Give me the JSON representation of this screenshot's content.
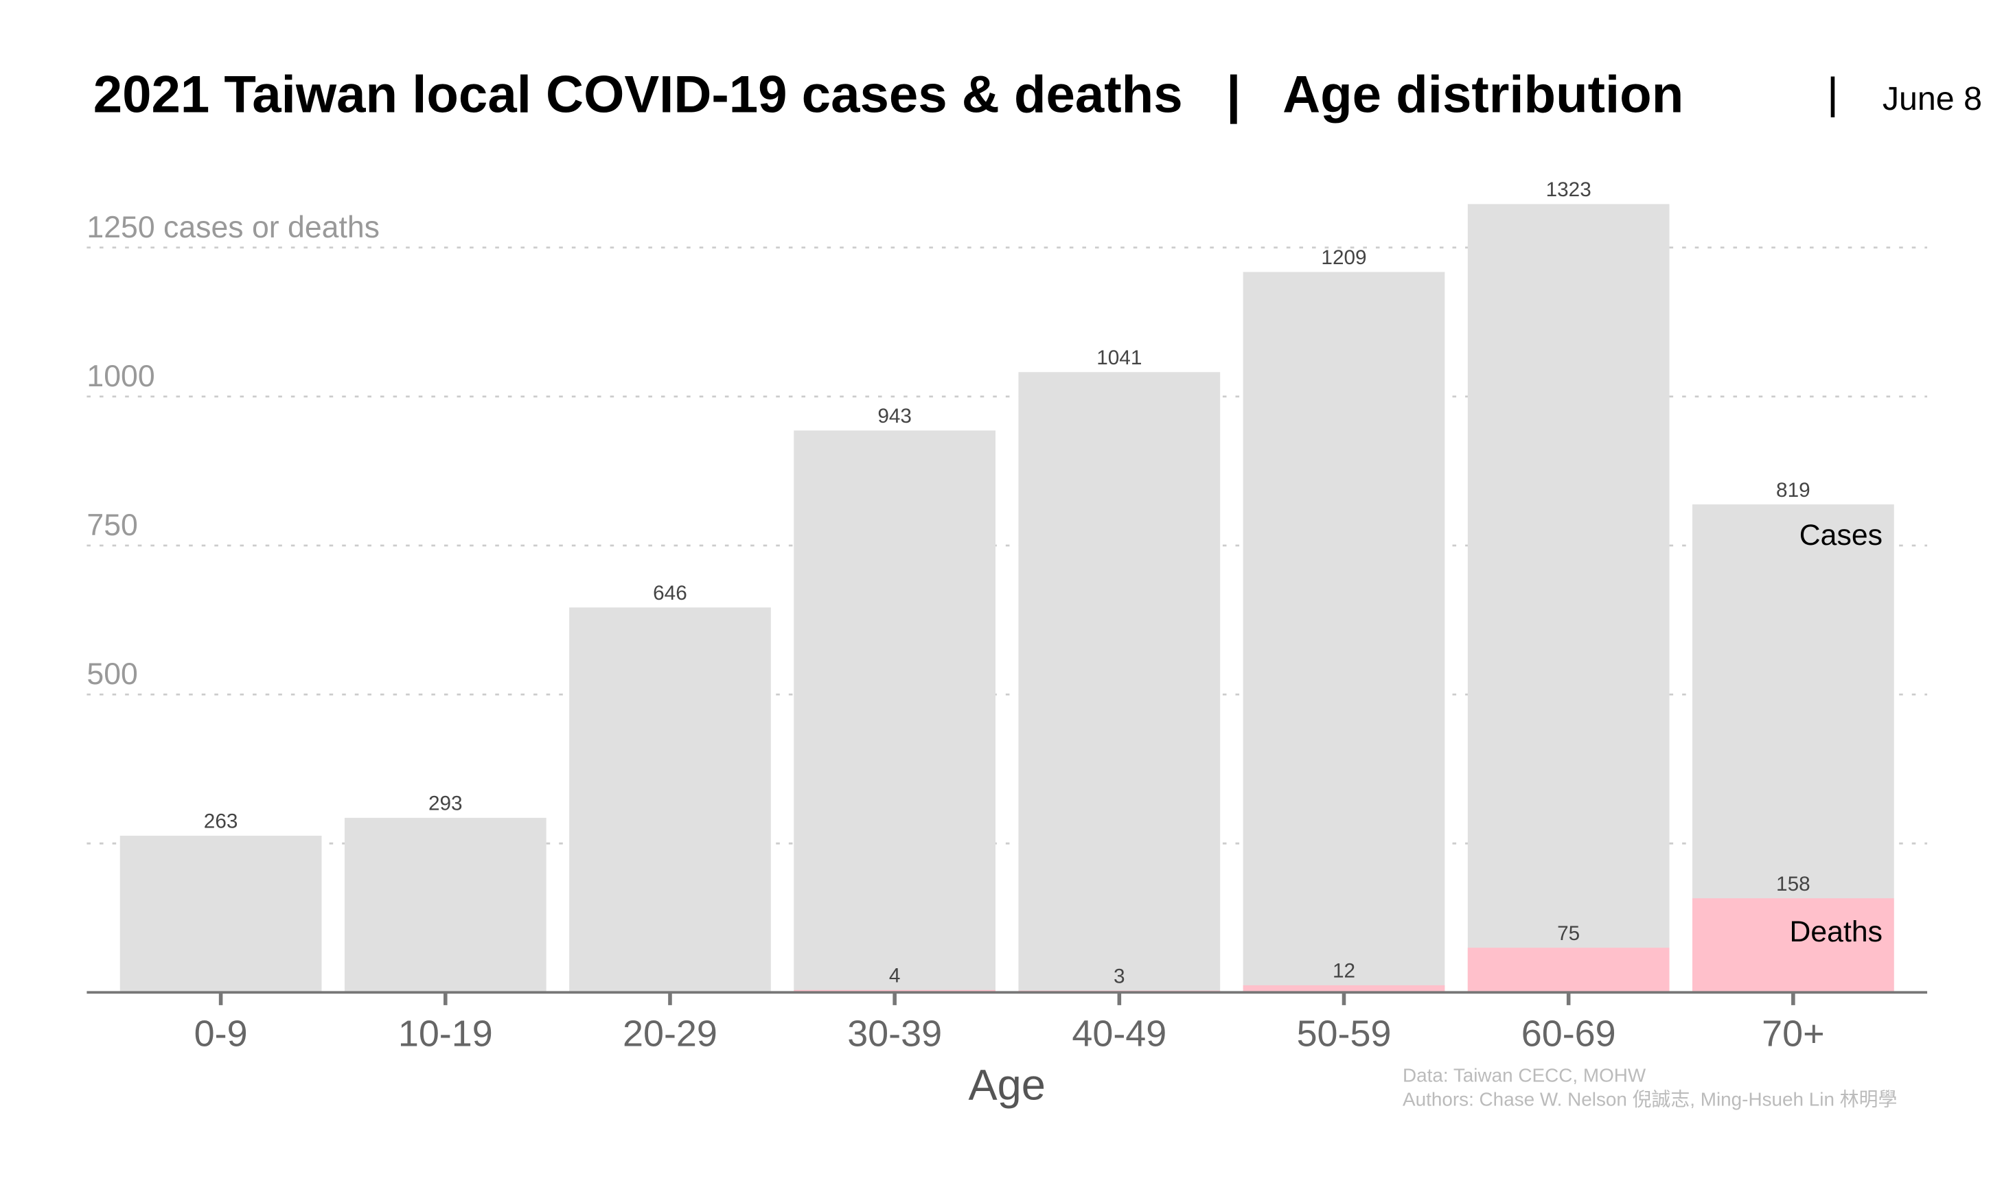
{
  "chart_data": {
    "type": "bar",
    "title": "2021 Taiwan local COVID-19 cases & deaths   |   Age distribution",
    "date": "June 8",
    "x_label": "Age",
    "notes": [
      "Data: Taiwan CECC, MOHW",
      "Authors: Chase W. Nelson 倪誠志, Ming-Hsueh Lin 林明學"
    ],
    "categories": [
      "0-9",
      "10-19",
      "20-29",
      "30-39",
      "40-49",
      "50-59",
      "60-69",
      "70+"
    ],
    "series": [
      {
        "name": "Cases",
        "color": "#e0e0e0",
        "values": [
          263,
          293,
          646,
          943,
          1041,
          1209,
          1323,
          819
        ]
      },
      {
        "name": "Deaths",
        "color": "#ffc0cb",
        "values": [
          null,
          null,
          null,
          4,
          3,
          12,
          75,
          158
        ]
      }
    ],
    "ylim": [
      0,
      1370
    ],
    "yticks": [
      {
        "value": 250,
        "label": null
      },
      500,
      750,
      1000,
      {
        "value": 1250,
        "label": "1250 cases or deaths"
      }
    ],
    "grid": true
  }
}
